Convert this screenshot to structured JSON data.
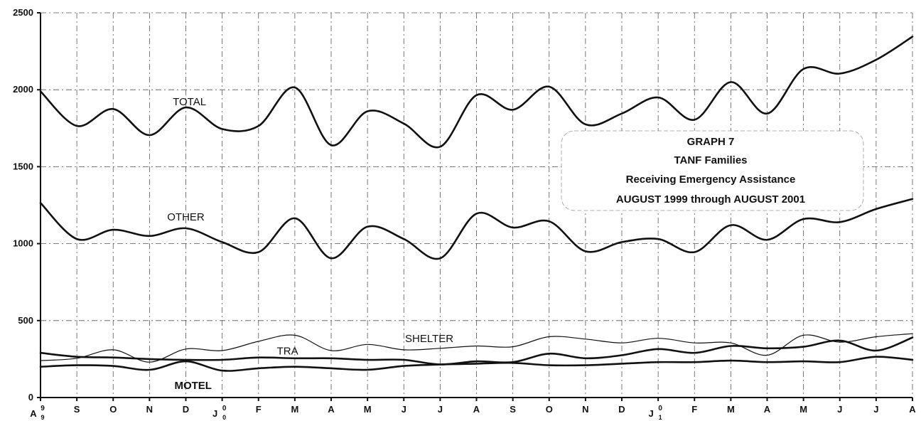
{
  "chart_data": {
    "type": "line",
    "title": [
      "GRAPH 7",
      "TANF Families",
      "Receiving Emergency Assistance",
      "AUGUST 1999 through AUGUST 2001"
    ],
    "xlabel": "",
    "ylabel": "",
    "ylim": [
      0,
      2500
    ],
    "yticks": [
      0,
      500,
      1000,
      1500,
      2000,
      2500
    ],
    "grid": true,
    "categories": [
      "A",
      "S",
      "O",
      "N",
      "D",
      "J",
      "F",
      "M",
      "A",
      "M",
      "J",
      "J",
      "A",
      "S",
      "O",
      "N",
      "D",
      "J",
      "F",
      "M",
      "A",
      "M",
      "J",
      "J",
      "A"
    ],
    "year_marks": [
      {
        "index": 0,
        "label": "9",
        "sub": "9"
      },
      {
        "index": 5,
        "label": "0",
        "sub": "0"
      },
      {
        "index": 17,
        "label": "0",
        "sub": "1"
      }
    ],
    "series": [
      {
        "name": "TOTAL",
        "width": 2.6,
        "values": [
          1990,
          1765,
          1875,
          1705,
          1885,
          1745,
          1765,
          2015,
          1640,
          1860,
          1780,
          1630,
          1965,
          1870,
          2020,
          1775,
          1845,
          1950,
          1805,
          2050,
          1845,
          2135,
          2105,
          2195,
          2345
        ]
      },
      {
        "name": "OTHER",
        "width": 2.6,
        "values": [
          1265,
          1030,
          1090,
          1050,
          1100,
          1010,
          945,
          1165,
          905,
          1110,
          1030,
          905,
          1195,
          1105,
          1145,
          950,
          1010,
          1030,
          945,
          1120,
          1025,
          1160,
          1140,
          1225,
          1290
        ]
      },
      {
        "name": "SHELTER",
        "width": 1.2,
        "values": [
          240,
          255,
          310,
          230,
          315,
          305,
          365,
          405,
          305,
          345,
          310,
          320,
          335,
          330,
          395,
          380,
          355,
          385,
          355,
          355,
          275,
          405,
          360,
          395,
          415
        ]
      },
      {
        "name": "TRA",
        "width": 2.6,
        "values": [
          290,
          265,
          260,
          250,
          245,
          245,
          260,
          255,
          255,
          245,
          245,
          215,
          235,
          230,
          285,
          255,
          275,
          315,
          290,
          335,
          320,
          330,
          370,
          305,
          390
        ]
      },
      {
        "name": "MOTEL",
        "width": 2.6,
        "values": [
          200,
          210,
          205,
          180,
          235,
          175,
          190,
          200,
          190,
          180,
          205,
          215,
          220,
          225,
          210,
          210,
          220,
          230,
          230,
          240,
          230,
          235,
          230,
          265,
          245
        ]
      }
    ],
    "series_labels": [
      {
        "series": "TOTAL",
        "text": "TOTAL",
        "at": [
          4.1,
          1900
        ],
        "bold": false
      },
      {
        "series": "OTHER",
        "text": "OTHER",
        "at": [
          4.0,
          1150
        ],
        "bold": false
      },
      {
        "series": "SHELTER",
        "text": "SHELTER",
        "at": [
          10.7,
          360
        ],
        "bold": false
      },
      {
        "series": "TRA",
        "text": "TRA",
        "at": [
          6.8,
          280
        ],
        "bold": false
      },
      {
        "series": "MOTEL",
        "text": "MOTEL",
        "at": [
          4.2,
          55
        ],
        "bold": true
      }
    ]
  }
}
